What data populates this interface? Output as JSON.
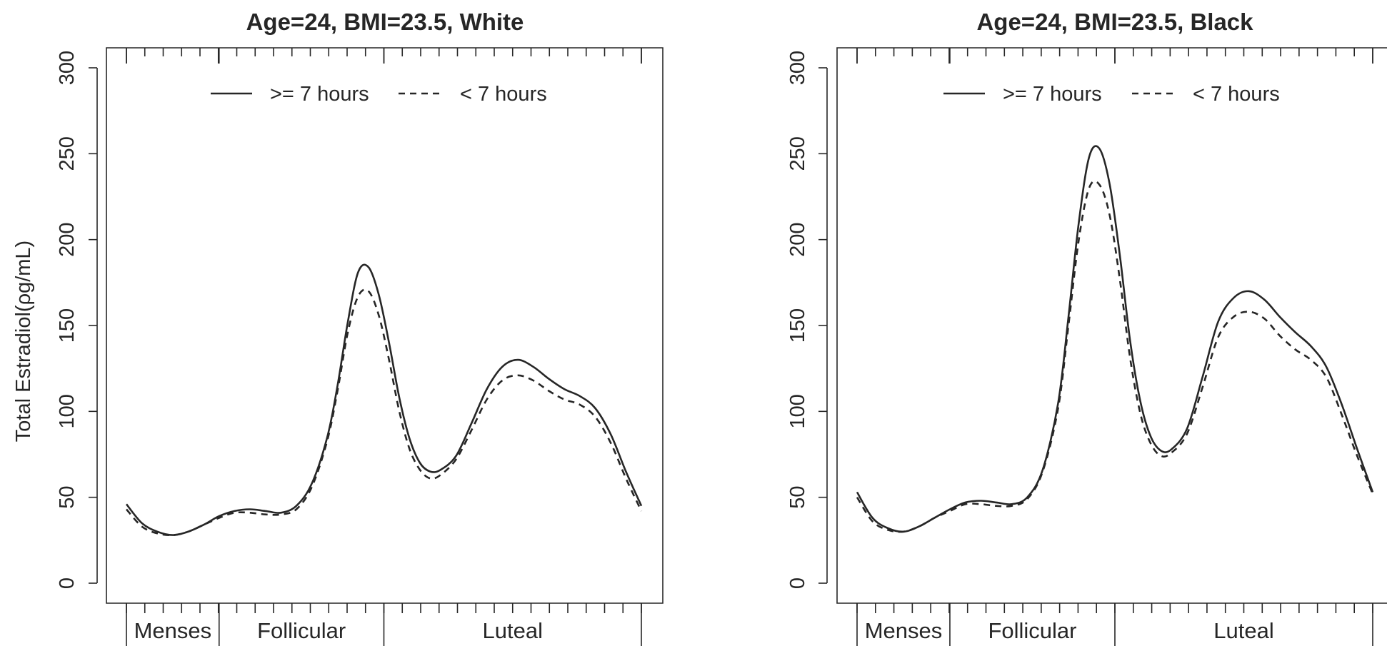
{
  "figure": {
    "ylabel": "Total Estradiol(ρg/mL)"
  },
  "chart_data": [
    {
      "type": "line",
      "title": "Age=24, BMI=23.5, White",
      "ylabel": "Total Estradiol(ρg/mL)",
      "ylim": [
        0,
        300
      ],
      "yticks": [
        "0",
        "50",
        "100",
        "150",
        "200",
        "250",
        "300"
      ],
      "xlim": [
        0,
        1
      ],
      "phases": [
        {
          "label": "Menses",
          "start": 0.0,
          "end": 0.18
        },
        {
          "label": "Follicular",
          "start": 0.18,
          "end": 0.5
        },
        {
          "label": "Luteal",
          "start": 0.5,
          "end": 1.0
        }
      ],
      "legend": {
        "position": "top",
        "entries": [
          ">= 7 hours",
          "< 7 hours"
        ]
      },
      "x": [
        0.0,
        0.03,
        0.06,
        0.09,
        0.12,
        0.15,
        0.18,
        0.21,
        0.24,
        0.27,
        0.3,
        0.33,
        0.36,
        0.39,
        0.41,
        0.43,
        0.45,
        0.47,
        0.49,
        0.51,
        0.53,
        0.55,
        0.57,
        0.59,
        0.61,
        0.64,
        0.67,
        0.7,
        0.73,
        0.76,
        0.79,
        0.82,
        0.85,
        0.88,
        0.91,
        0.94,
        0.97,
        1.0
      ],
      "series": [
        {
          "name": ">= 7 hours",
          "style": "solid",
          "values": [
            46,
            35,
            30,
            28,
            30,
            34,
            39,
            42,
            43,
            42,
            41,
            45,
            58,
            85,
            115,
            152,
            181,
            184,
            168,
            140,
            108,
            84,
            70,
            65,
            66,
            74,
            93,
            113,
            126,
            130,
            126,
            119,
            113,
            109,
            102,
            87,
            65,
            45
          ]
        },
        {
          "name": "< 7 hours",
          "style": "dashed",
          "values": [
            43,
            33,
            29,
            28,
            30,
            34,
            38,
            41,
            41,
            40,
            40,
            43,
            56,
            83,
            112,
            146,
            167,
            170,
            156,
            130,
            100,
            78,
            66,
            61,
            63,
            72,
            89,
            107,
            118,
            121,
            118,
            112,
            107,
            104,
            97,
            82,
            61,
            42
          ]
        }
      ]
    },
    {
      "type": "line",
      "title": "Age=24, BMI=23.5, Black",
      "ylabel": "",
      "ylim": [
        0,
        300
      ],
      "yticks": [
        "0",
        "50",
        "100",
        "150",
        "200",
        "250",
        "300"
      ],
      "xlim": [
        0,
        1
      ],
      "phases": [
        {
          "label": "Menses",
          "start": 0.0,
          "end": 0.18
        },
        {
          "label": "Follicular",
          "start": 0.18,
          "end": 0.5
        },
        {
          "label": "Luteal",
          "start": 0.5,
          "end": 1.0
        }
      ],
      "legend": {
        "position": "top",
        "entries": [
          ">= 7 hours",
          "< 7 hours"
        ]
      },
      "x": [
        0.0,
        0.03,
        0.06,
        0.09,
        0.12,
        0.15,
        0.18,
        0.21,
        0.24,
        0.27,
        0.3,
        0.33,
        0.36,
        0.39,
        0.41,
        0.43,
        0.45,
        0.47,
        0.49,
        0.51,
        0.53,
        0.55,
        0.57,
        0.59,
        0.61,
        0.64,
        0.67,
        0.7,
        0.73,
        0.76,
        0.79,
        0.82,
        0.85,
        0.88,
        0.91,
        0.94,
        0.97,
        1.0
      ],
      "series": [
        {
          "name": ">= 7 hours",
          "style": "solid",
          "values": [
            53,
            38,
            32,
            30,
            33,
            38,
            43,
            47,
            48,
            47,
            46,
            50,
            66,
            105,
            155,
            210,
            248,
            253,
            232,
            190,
            140,
            105,
            85,
            77,
            78,
            90,
            120,
            152,
            166,
            170,
            165,
            155,
            146,
            138,
            126,
            104,
            78,
            53
          ]
        },
        {
          "name": "< 7 hours",
          "style": "dashed",
          "values": [
            50,
            36,
            31,
            30,
            33,
            38,
            42,
            46,
            46,
            45,
            45,
            49,
            65,
            102,
            150,
            200,
            230,
            232,
            214,
            176,
            130,
            98,
            81,
            74,
            76,
            87,
            114,
            143,
            155,
            158,
            154,
            144,
            136,
            130,
            120,
            98,
            74,
            52
          ]
        }
      ]
    }
  ]
}
